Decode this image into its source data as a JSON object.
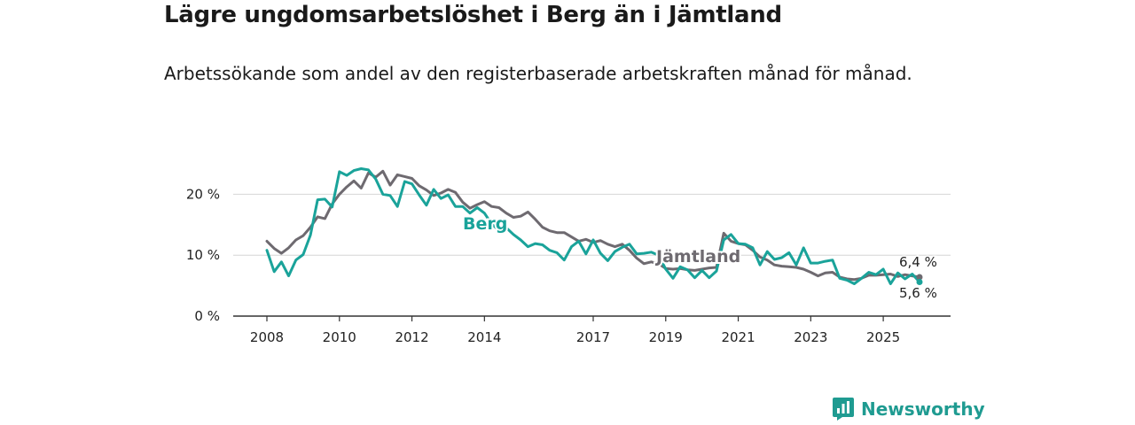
{
  "header": {
    "title": "Lägre ungdomsarbetslöshet i Berg än i Jämtland",
    "subtitle": "Arbetssökande som andel av den registerbaserade arbetskraften månad för månad."
  },
  "brand": {
    "name": "Newsworthy",
    "icon": "bar-chart-icon",
    "color": "#1f9b91"
  },
  "chart_data": {
    "type": "line",
    "title": "Lägre ungdomsarbetslöshet i Berg än i Jämtland",
    "xlabel": "",
    "ylabel": "",
    "xlim": [
      2008.0,
      2026.85
    ],
    "ylim": [
      0,
      25
    ],
    "grid": true,
    "y_ticks": [
      {
        "value": 0,
        "label": "0 %"
      },
      {
        "value": 10,
        "label": "10 %"
      },
      {
        "value": 20,
        "label": "20 %"
      }
    ],
    "x_ticks": [
      {
        "value": 2008,
        "label": "2008"
      },
      {
        "value": 2010,
        "label": "2010"
      },
      {
        "value": 2012,
        "label": "2012"
      },
      {
        "value": 2014,
        "label": "2014"
      },
      {
        "value": 2017,
        "label": "2017"
      },
      {
        "value": 2019,
        "label": "2019"
      },
      {
        "value": 2021,
        "label": "2021"
      },
      {
        "value": 2023,
        "label": "2023"
      },
      {
        "value": 2025,
        "label": "2025"
      }
    ],
    "series": [
      {
        "name": "Jämtland",
        "color": "#6e6a70",
        "label": "Jämtland",
        "end_label": "6,4 %",
        "end_value": 6.4,
        "points": [
          [
            2008.0,
            12.3
          ],
          [
            2008.2,
            11.1
          ],
          [
            2008.4,
            10.3
          ],
          [
            2008.6,
            11.2
          ],
          [
            2008.8,
            12.5
          ],
          [
            2009.0,
            13.2
          ],
          [
            2009.2,
            14.6
          ],
          [
            2009.4,
            16.3
          ],
          [
            2009.6,
            16.0
          ],
          [
            2009.8,
            18.4
          ],
          [
            2010.0,
            20.0
          ],
          [
            2010.2,
            21.2
          ],
          [
            2010.4,
            22.2
          ],
          [
            2010.6,
            21.0
          ],
          [
            2010.8,
            23.5
          ],
          [
            2011.0,
            22.8
          ],
          [
            2011.2,
            23.8
          ],
          [
            2011.4,
            21.5
          ],
          [
            2011.6,
            23.2
          ],
          [
            2011.8,
            22.9
          ],
          [
            2012.0,
            22.6
          ],
          [
            2012.2,
            21.4
          ],
          [
            2012.4,
            20.7
          ],
          [
            2012.6,
            19.8
          ],
          [
            2012.8,
            20.2
          ],
          [
            2013.0,
            20.8
          ],
          [
            2013.2,
            20.3
          ],
          [
            2013.4,
            18.7
          ],
          [
            2013.6,
            17.7
          ],
          [
            2013.8,
            18.3
          ],
          [
            2014.0,
            18.8
          ],
          [
            2014.2,
            18.0
          ],
          [
            2014.4,
            17.8
          ],
          [
            2014.6,
            16.9
          ],
          [
            2014.8,
            16.2
          ],
          [
            2015.0,
            16.4
          ],
          [
            2015.2,
            17.1
          ],
          [
            2015.4,
            15.9
          ],
          [
            2015.6,
            14.6
          ],
          [
            2015.8,
            14.0
          ],
          [
            2016.0,
            13.7
          ],
          [
            2016.2,
            13.7
          ],
          [
            2016.4,
            13.0
          ],
          [
            2016.6,
            12.3
          ],
          [
            2016.8,
            12.6
          ],
          [
            2017.0,
            12.1
          ],
          [
            2017.2,
            12.4
          ],
          [
            2017.4,
            11.8
          ],
          [
            2017.6,
            11.4
          ],
          [
            2017.8,
            11.8
          ],
          [
            2018.0,
            10.8
          ],
          [
            2018.2,
            9.5
          ],
          [
            2018.4,
            8.6
          ],
          [
            2018.6,
            8.9
          ],
          [
            2018.8,
            8.6
          ],
          [
            2019.0,
            7.8
          ],
          [
            2019.2,
            7.7
          ],
          [
            2019.4,
            7.8
          ],
          [
            2019.6,
            7.6
          ],
          [
            2019.8,
            7.5
          ],
          [
            2020.0,
            7.7
          ],
          [
            2020.2,
            7.9
          ],
          [
            2020.4,
            8.0
          ],
          [
            2020.6,
            13.6
          ],
          [
            2020.8,
            12.3
          ],
          [
            2021.0,
            11.9
          ],
          [
            2021.2,
            11.7
          ],
          [
            2021.4,
            10.8
          ],
          [
            2021.6,
            9.7
          ],
          [
            2021.8,
            9.2
          ],
          [
            2022.0,
            8.4
          ],
          [
            2022.2,
            8.2
          ],
          [
            2022.4,
            8.1
          ],
          [
            2022.6,
            8.0
          ],
          [
            2022.8,
            7.7
          ],
          [
            2023.0,
            7.2
          ],
          [
            2023.2,
            6.6
          ],
          [
            2023.4,
            7.1
          ],
          [
            2023.6,
            7.2
          ],
          [
            2023.8,
            6.4
          ],
          [
            2024.0,
            6.1
          ],
          [
            2024.2,
            6.0
          ],
          [
            2024.4,
            6.2
          ],
          [
            2024.6,
            6.7
          ],
          [
            2024.8,
            6.7
          ],
          [
            2025.0,
            6.8
          ],
          [
            2025.2,
            6.9
          ],
          [
            2025.4,
            6.5
          ],
          [
            2025.6,
            6.8
          ],
          [
            2025.8,
            6.6
          ],
          [
            2026.0,
            6.4
          ]
        ]
      },
      {
        "name": "Berg",
        "color": "#1aa39a",
        "label": "Berg",
        "end_label": "5,6 %",
        "end_value": 5.6,
        "points": [
          [
            2008.0,
            10.8
          ],
          [
            2008.2,
            7.3
          ],
          [
            2008.4,
            8.9
          ],
          [
            2008.6,
            6.6
          ],
          [
            2008.8,
            9.2
          ],
          [
            2009.0,
            10.1
          ],
          [
            2009.2,
            13.3
          ],
          [
            2009.4,
            19.1
          ],
          [
            2009.6,
            19.2
          ],
          [
            2009.8,
            17.9
          ],
          [
            2010.0,
            23.7
          ],
          [
            2010.2,
            23.1
          ],
          [
            2010.4,
            23.9
          ],
          [
            2010.6,
            24.2
          ],
          [
            2010.8,
            24.0
          ],
          [
            2011.0,
            22.5
          ],
          [
            2011.2,
            20.0
          ],
          [
            2011.4,
            19.8
          ],
          [
            2011.6,
            18.0
          ],
          [
            2011.8,
            22.1
          ],
          [
            2012.0,
            21.7
          ],
          [
            2012.2,
            19.9
          ],
          [
            2012.4,
            18.2
          ],
          [
            2012.6,
            20.8
          ],
          [
            2012.8,
            19.3
          ],
          [
            2013.0,
            19.9
          ],
          [
            2013.2,
            18.0
          ],
          [
            2013.4,
            18.0
          ],
          [
            2013.6,
            16.9
          ],
          [
            2013.8,
            17.8
          ],
          [
            2014.0,
            16.9
          ],
          [
            2014.2,
            15.1
          ],
          [
            2014.4,
            14.1
          ],
          [
            2014.6,
            14.5
          ],
          [
            2014.8,
            13.4
          ],
          [
            2015.0,
            12.5
          ],
          [
            2015.2,
            11.4
          ],
          [
            2015.4,
            11.9
          ],
          [
            2015.6,
            11.7
          ],
          [
            2015.8,
            10.8
          ],
          [
            2016.0,
            10.4
          ],
          [
            2016.2,
            9.2
          ],
          [
            2016.4,
            11.4
          ],
          [
            2016.6,
            12.3
          ],
          [
            2016.8,
            10.2
          ],
          [
            2017.0,
            12.5
          ],
          [
            2017.2,
            10.3
          ],
          [
            2017.4,
            9.1
          ],
          [
            2017.6,
            10.6
          ],
          [
            2017.8,
            11.3
          ],
          [
            2018.0,
            11.8
          ],
          [
            2018.2,
            10.2
          ],
          [
            2018.4,
            10.3
          ],
          [
            2018.6,
            10.5
          ],
          [
            2018.8,
            10.0
          ],
          [
            2019.0,
            7.7
          ],
          [
            2019.2,
            6.2
          ],
          [
            2019.4,
            8.1
          ],
          [
            2019.6,
            7.6
          ],
          [
            2019.8,
            6.3
          ],
          [
            2020.0,
            7.5
          ],
          [
            2020.2,
            6.3
          ],
          [
            2020.4,
            7.4
          ],
          [
            2020.6,
            12.5
          ],
          [
            2020.8,
            13.4
          ],
          [
            2021.0,
            11.9
          ],
          [
            2021.2,
            11.8
          ],
          [
            2021.4,
            11.2
          ],
          [
            2021.6,
            8.4
          ],
          [
            2021.8,
            10.6
          ],
          [
            2022.0,
            9.3
          ],
          [
            2022.2,
            9.6
          ],
          [
            2022.4,
            10.4
          ],
          [
            2022.6,
            8.4
          ],
          [
            2022.8,
            11.2
          ],
          [
            2023.0,
            8.7
          ],
          [
            2023.2,
            8.7
          ],
          [
            2023.4,
            9.0
          ],
          [
            2023.6,
            9.2
          ],
          [
            2023.8,
            6.2
          ],
          [
            2024.0,
            5.9
          ],
          [
            2024.2,
            5.3
          ],
          [
            2024.4,
            6.2
          ],
          [
            2024.6,
            7.2
          ],
          [
            2024.8,
            6.8
          ],
          [
            2025.0,
            7.7
          ],
          [
            2025.2,
            5.3
          ],
          [
            2025.4,
            7.1
          ],
          [
            2025.6,
            6.1
          ],
          [
            2025.8,
            6.9
          ],
          [
            2026.0,
            5.6
          ]
        ]
      }
    ]
  }
}
